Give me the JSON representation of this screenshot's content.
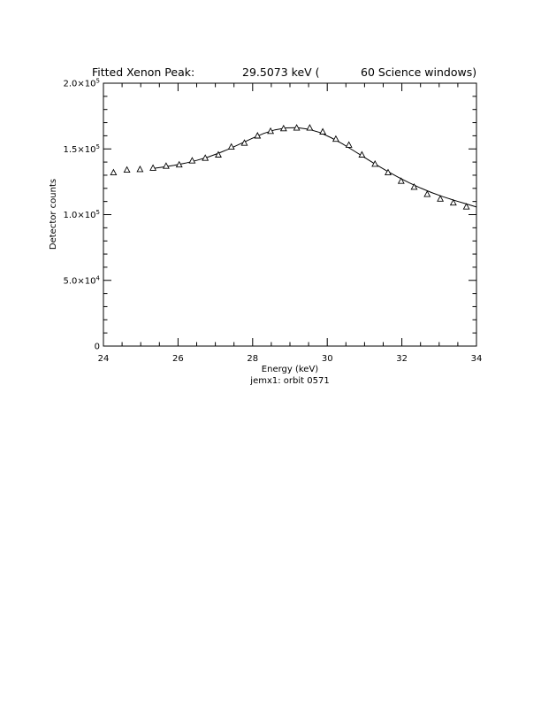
{
  "chart_data": {
    "type": "scatter",
    "title_left": "Fitted Xenon Peak:",
    "title_mid": "29.5073 keV (",
    "title_right": "60 Science windows)",
    "xlabel": "Energy (keV)",
    "ylabel": "Detector counts",
    "subtitle": "jemx1: orbit 0571",
    "xlim": [
      24,
      34
    ],
    "ylim": [
      0,
      200000
    ],
    "x_ticks": [
      {
        "value": 24,
        "label": "24"
      },
      {
        "value": 26,
        "label": "26"
      },
      {
        "value": 28,
        "label": "28"
      },
      {
        "value": 30,
        "label": "30"
      },
      {
        "value": 32,
        "label": "32"
      },
      {
        "value": 34,
        "label": "34"
      }
    ],
    "y_ticks": [
      {
        "value": 0,
        "mant": "0",
        "exp": ""
      },
      {
        "value": 50000,
        "mant": "5.0×10",
        "exp": "4"
      },
      {
        "value": 100000,
        "mant": "1.0×10",
        "exp": "5"
      },
      {
        "value": 150000,
        "mant": "1.5×10",
        "exp": "5"
      },
      {
        "value": 200000,
        "mant": "2.0×10",
        "exp": "5"
      }
    ],
    "series": [
      {
        "marker": "triangle",
        "x": [
          24.27,
          24.63,
          24.98,
          25.33,
          25.68,
          26.03,
          26.38,
          26.73,
          27.08,
          27.43,
          27.78,
          28.13,
          28.48,
          28.83,
          29.18,
          29.53,
          29.88,
          30.23,
          30.58,
          30.93,
          31.28,
          31.63,
          31.98,
          32.33,
          32.68,
          33.03,
          33.38,
          33.73
        ],
        "y": [
          132000,
          134000,
          134500,
          135500,
          137000,
          138000,
          141000,
          143000,
          145500,
          151500,
          154500,
          160000,
          163500,
          165500,
          166000,
          166000,
          163000,
          157500,
          153000,
          145500,
          138500,
          132000,
          125500,
          121000,
          115500,
          112000,
          109000,
          106000
        ]
      },
      {
        "line": "fit",
        "x": [
          25.3,
          25.6,
          25.9,
          26.2,
          26.5,
          26.8,
          27.1,
          27.4,
          27.7,
          28.0,
          28.3,
          28.6,
          28.9,
          29.2,
          29.5,
          29.8,
          30.1,
          30.4,
          30.7,
          31.0,
          31.3,
          31.6,
          31.9,
          32.2,
          32.5,
          32.8,
          33.1,
          33.4,
          33.7,
          34.0
        ],
        "y": [
          135000,
          136200,
          137600,
          139200,
          141300,
          143800,
          146900,
          150400,
          154300,
          158200,
          161800,
          164500,
          166000,
          166200,
          165000,
          162500,
          158600,
          154000,
          148800,
          143500,
          138200,
          133200,
          128500,
          124200,
          120300,
          116800,
          113700,
          110900,
          108400,
          105800
        ]
      }
    ]
  }
}
